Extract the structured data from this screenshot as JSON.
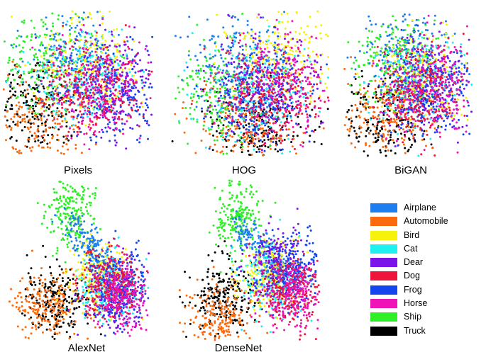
{
  "chart_data": {
    "type": "scatter",
    "description_free": true,
    "classes": [
      {
        "name": "Airplane",
        "color": "#1e7ef0"
      },
      {
        "name": "Automobile",
        "color": "#fb6a0c"
      },
      {
        "name": "Bird",
        "color": "#f6f20c"
      },
      {
        "name": "Cat",
        "color": "#20f0f0"
      },
      {
        "name": "Dear",
        "color": "#7a14e8"
      },
      {
        "name": "Dog",
        "color": "#f0143c"
      },
      {
        "name": "Frog",
        "color": "#1446f0"
      },
      {
        "name": "Horse",
        "color": "#ee14b8"
      },
      {
        "name": "Ship",
        "color": "#2ff026"
      },
      {
        "name": "Truck",
        "color": "#000000"
      }
    ],
    "panels": [
      {
        "title": "Pixels",
        "clusters": {
          "Airplane": [
            0.45,
            0.32
          ],
          "Automobile": [
            0.22,
            0.78
          ],
          "Bird": [
            0.6,
            0.4
          ],
          "Cat": [
            0.55,
            0.45
          ],
          "Dear": [
            0.72,
            0.5
          ],
          "Dog": [
            0.6,
            0.55
          ],
          "Frog": [
            0.75,
            0.6
          ],
          "Horse": [
            0.65,
            0.55
          ],
          "Ship": [
            0.3,
            0.35
          ],
          "Truck": [
            0.18,
            0.65
          ]
        }
      },
      {
        "title": "HOG",
        "clusters": {
          "Airplane": [
            0.45,
            0.35
          ],
          "Automobile": [
            0.45,
            0.78
          ],
          "Bird": [
            0.7,
            0.3
          ],
          "Cat": [
            0.55,
            0.55
          ],
          "Dear": [
            0.6,
            0.5
          ],
          "Dog": [
            0.65,
            0.6
          ],
          "Frog": [
            0.55,
            0.6
          ],
          "Horse": [
            0.7,
            0.5
          ],
          "Ship": [
            0.3,
            0.55
          ],
          "Truck": [
            0.55,
            0.82
          ]
        }
      },
      {
        "title": "BiGAN",
        "clusters": {
          "Airplane": [
            0.5,
            0.3
          ],
          "Automobile": [
            0.35,
            0.7
          ],
          "Bird": [
            0.6,
            0.45
          ],
          "Cat": [
            0.55,
            0.5
          ],
          "Dear": [
            0.65,
            0.5
          ],
          "Dog": [
            0.6,
            0.55
          ],
          "Frog": [
            0.7,
            0.55
          ],
          "Horse": [
            0.68,
            0.5
          ],
          "Ship": [
            0.4,
            0.3
          ],
          "Truck": [
            0.32,
            0.75
          ]
        }
      },
      {
        "title": "AlexNet",
        "clusters": {
          "Airplane": [
            0.55,
            0.42
          ],
          "Automobile": [
            0.28,
            0.8
          ],
          "Bird": [
            0.65,
            0.6
          ],
          "Cat": [
            0.7,
            0.68
          ],
          "Dear": [
            0.78,
            0.7
          ],
          "Dog": [
            0.72,
            0.66
          ],
          "Frog": [
            0.8,
            0.65
          ],
          "Horse": [
            0.82,
            0.72
          ],
          "Ship": [
            0.45,
            0.2
          ],
          "Truck": [
            0.35,
            0.75
          ]
        }
      },
      {
        "title": "DenseNet",
        "clusters": {
          "Airplane": [
            0.58,
            0.48
          ],
          "Automobile": [
            0.32,
            0.88
          ],
          "Bird": [
            0.66,
            0.6
          ],
          "Cat": [
            0.68,
            0.62
          ],
          "Dear": [
            0.72,
            0.52
          ],
          "Dog": [
            0.8,
            0.7
          ],
          "Frog": [
            0.82,
            0.55
          ],
          "Horse": [
            0.82,
            0.72
          ],
          "Ship": [
            0.45,
            0.22
          ],
          "Truck": [
            0.35,
            0.72
          ]
        }
      }
    ]
  }
}
